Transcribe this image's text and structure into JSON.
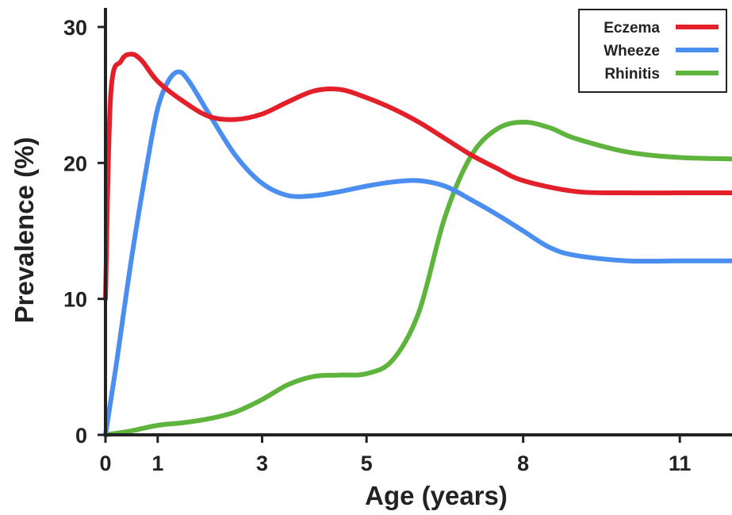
{
  "chart_data": {
    "type": "line",
    "title": "",
    "xlabel": "Age (years)",
    "ylabel": "Prevalence (%)",
    "xlim": [
      0,
      12
    ],
    "ylim": [
      0,
      30
    ],
    "x_ticks": [
      0,
      1,
      3,
      5,
      8,
      11
    ],
    "y_ticks": [
      0,
      10,
      20,
      30
    ],
    "grid": false,
    "legend_position": "top-right",
    "series": [
      {
        "name": "Eczema",
        "color": "#e3202a",
        "x": [
          0,
          0.1,
          0.3,
          0.5,
          0.7,
          1,
          1.5,
          2,
          2.5,
          3,
          3.5,
          4,
          4.5,
          5,
          5.5,
          6,
          6.5,
          7,
          7.5,
          8,
          9,
          10,
          11,
          12
        ],
        "y": [
          10,
          25,
          27.5,
          28,
          27.5,
          26,
          24.5,
          23.4,
          23.2,
          23.6,
          24.5,
          25.3,
          25.4,
          24.8,
          24,
          23,
          21.8,
          20.6,
          19.6,
          18.7,
          17.9,
          17.8,
          17.8,
          17.8
        ]
      },
      {
        "name": "Wheeze",
        "color": "#4a8ff0",
        "x": [
          0,
          0.2,
          0.5,
          0.8,
          1,
          1.2,
          1.4,
          1.6,
          2,
          2.5,
          3,
          3.5,
          4,
          4.5,
          5,
          5.5,
          6,
          6.5,
          7,
          7.5,
          8,
          8.5,
          9,
          10,
          11,
          12
        ],
        "y": [
          0,
          5,
          13,
          20,
          24,
          26,
          26.7,
          26,
          23.5,
          20.5,
          18.5,
          17.6,
          17.6,
          17.9,
          18.3,
          18.6,
          18.7,
          18.3,
          17.3,
          16.2,
          15,
          13.8,
          13.2,
          12.8,
          12.8,
          12.8
        ]
      },
      {
        "name": "Rhinitis",
        "color": "#5eb43c",
        "x": [
          0,
          0.5,
          1,
          1.5,
          2,
          2.5,
          3,
          3.5,
          4,
          4.5,
          5,
          5.5,
          6,
          6.5,
          7,
          7.5,
          8,
          8.5,
          9,
          10,
          11,
          12
        ],
        "y": [
          0,
          0.3,
          0.7,
          0.9,
          1.2,
          1.7,
          2.6,
          3.7,
          4.3,
          4.4,
          4.5,
          5.5,
          9,
          16,
          20.5,
          22.5,
          23,
          22.6,
          21.8,
          20.8,
          20.4,
          20.3
        ]
      }
    ]
  }
}
